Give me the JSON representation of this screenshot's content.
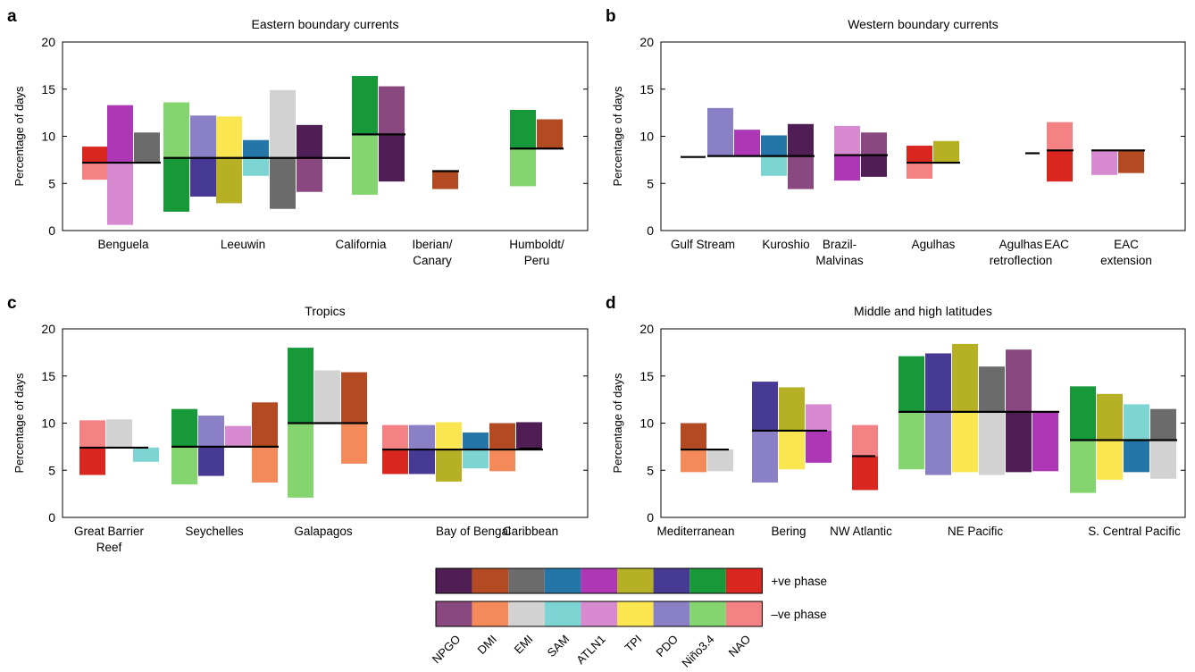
{
  "figure": {
    "legend": {
      "rows": [
        {
          "label": "+ve phase",
          "colors": [
            "#4e1e55",
            "#b34a21",
            "#6b6b6b",
            "#2476a8",
            "#ad37b5",
            "#b5b024",
            "#473a95",
            "#17993a",
            "#d9261f"
          ]
        },
        {
          "label": "–ve phase",
          "colors": [
            "#8a4880",
            "#f48a5a",
            "#d2d2d2",
            "#7dd5d3",
            "#d78ad0",
            "#f9e650",
            "#8a80c6",
            "#84d46f",
            "#f48284"
          ]
        }
      ],
      "indices": [
        "NPGO",
        "DMI",
        "EMI",
        "SAM",
        "ATLN1",
        "TPI",
        "PDO",
        "Niño3.4",
        "NAO"
      ]
    }
  },
  "colors": {
    "NPGO": {
      "pos": "#4e1e55",
      "neg": "#8a4880"
    },
    "DMI": {
      "pos": "#b34a21",
      "neg": "#f48a5a"
    },
    "EMI": {
      "pos": "#6b6b6b",
      "neg": "#d2d2d2"
    },
    "SAM": {
      "pos": "#2476a8",
      "neg": "#7dd5d3"
    },
    "ATLN1": {
      "pos": "#ad37b5",
      "neg": "#d78ad0"
    },
    "TPI": {
      "pos": "#b5b024",
      "neg": "#f9e650"
    },
    "PDO": {
      "pos": "#473a95",
      "neg": "#8a80c6"
    },
    "Niño3.4": {
      "pos": "#17993a",
      "neg": "#84d46f"
    },
    "NAO": {
      "pos": "#d9261f",
      "neg": "#f48284"
    }
  },
  "chart_data": [
    {
      "type": "bar",
      "panel": "a",
      "title": "Eastern boundary currents",
      "xlabel": "",
      "ylabel": "Percentage of days",
      "ylim": [
        0,
        20
      ],
      "yticks": [
        0,
        5,
        10,
        15,
        20
      ],
      "legend": "below",
      "groups": [
        {
          "label": [
            "Benguela"
          ],
          "baseline": 7.2,
          "bars": [
            {
              "index": "NAO",
              "pos": 8.9,
              "neg": 5.4
            },
            {
              "index": "ATLN1",
              "pos": 13.3,
              "neg": 0.6
            },
            {
              "index": "EMI",
              "pos": 10.4,
              "neg": 7.2
            }
          ]
        },
        {
          "label": [
            "Leeuwin"
          ],
          "baseline": 7.7,
          "bars": [
            {
              "index": "Niño3.4",
              "pos": 2.0,
              "neg": 13.6
            },
            {
              "index": "PDO",
              "pos": 3.6,
              "neg": 12.2
            },
            {
              "index": "TPI",
              "pos": 2.9,
              "neg": 12.1
            },
            {
              "index": "SAM",
              "pos": 9.6,
              "neg": 5.8
            },
            {
              "index": "EMI",
              "pos": 2.3,
              "neg": 14.9
            },
            {
              "index": "NPGO",
              "pos": 11.2,
              "neg": 4.1
            }
          ]
        },
        {
          "label": [
            "California"
          ],
          "baseline": 10.2,
          "bars": [
            {
              "index": "Niño3.4",
              "pos": 16.4,
              "neg": 3.8
            },
            {
              "index": "NPGO",
              "pos": 5.2,
              "neg": 15.3
            }
          ]
        },
        {
          "label": [
            "Iberian/",
            "Canary"
          ],
          "baseline": 6.3,
          "bars": [
            {
              "index": "DMI",
              "pos": 4.4,
              "neg": 6.3
            }
          ]
        },
        {
          "label": [
            "Humboldt/",
            "Peru"
          ],
          "baseline": 8.7,
          "bars": [
            {
              "index": "Niño3.4",
              "pos": 12.8,
              "neg": 4.7
            },
            {
              "index": "DMI",
              "pos": 11.8,
              "neg": 8.7
            }
          ]
        }
      ]
    },
    {
      "type": "bar",
      "panel": "b",
      "title": "Western boundary currents",
      "xlabel": "",
      "ylabel": "Percentage of days",
      "ylim": [
        0,
        20
      ],
      "yticks": [
        0,
        5,
        10,
        15,
        20
      ],
      "legend": "below",
      "groups": [
        {
          "label": [
            "Gulf Stream"
          ],
          "baseline": 7.8,
          "bars": []
        },
        {
          "label": [
            "Kuroshio"
          ],
          "baseline": 7.9,
          "bars": [
            {
              "index": "PDO",
              "pos": 7.9,
              "neg": 13.0
            },
            {
              "index": "ATLN1",
              "pos": 10.7,
              "neg": 7.9
            },
            {
              "index": "SAM",
              "pos": 10.1,
              "neg": 5.8
            },
            {
              "index": "NPGO",
              "pos": 11.3,
              "neg": 4.4
            }
          ]
        },
        {
          "label": [
            "Brazil-",
            "Malvinas"
          ],
          "baseline": 8.0,
          "bars": [
            {
              "index": "ATLN1",
              "pos": 5.3,
              "neg": 11.1
            },
            {
              "index": "NPGO",
              "pos": 5.7,
              "neg": 10.4
            }
          ]
        },
        {
          "label": [
            "Agulhas"
          ],
          "baseline": 7.2,
          "bars": [
            {
              "index": "NAO",
              "pos": 9.0,
              "neg": 5.5
            },
            {
              "index": "TPI",
              "pos": 9.5,
              "neg": 7.2
            }
          ]
        },
        {
          "label": [
            "Agulhas",
            "retroflection"
          ],
          "baseline": 8.2,
          "bars": []
        },
        {
          "label": [
            "EAC"
          ],
          "baseline": 8.5,
          "bars": [
            {
              "index": "NAO",
              "pos": 5.2,
              "neg": 11.5
            }
          ]
        },
        {
          "label": [
            "EAC",
            "extension"
          ],
          "baseline": 8.5,
          "bars": [
            {
              "index": "ATLN1",
              "pos": 8.5,
              "neg": 5.9
            },
            {
              "index": "DMI",
              "pos": 6.1,
              "neg": 8.5
            }
          ]
        }
      ]
    },
    {
      "type": "bar",
      "panel": "c",
      "title": "Tropics",
      "xlabel": "",
      "ylabel": "Percentage of days",
      "ylim": [
        0,
        20
      ],
      "yticks": [
        0,
        5,
        10,
        15,
        20
      ],
      "legend": "below",
      "groups": [
        {
          "label": [
            "Great Barrier",
            "Reef"
          ],
          "baseline": 7.4,
          "bars": [
            {
              "index": "NAO",
              "pos": 4.5,
              "neg": 10.3
            },
            {
              "index": "EMI",
              "pos": 7.4,
              "neg": 10.4
            },
            {
              "index": "SAM",
              "pos": 7.4,
              "neg": 5.9
            }
          ]
        },
        {
          "label": [
            "Seychelles"
          ],
          "baseline": 7.5,
          "bars": [
            {
              "index": "Niño3.4",
              "pos": 11.5,
              "neg": 3.5
            },
            {
              "index": "PDO",
              "pos": 4.4,
              "neg": 10.8
            },
            {
              "index": "ATLN1",
              "pos": 7.5,
              "neg": 9.7
            },
            {
              "index": "DMI",
              "pos": 12.2,
              "neg": 3.7
            }
          ]
        },
        {
          "label": [
            "Galapagos"
          ],
          "baseline": 10.0,
          "bars": [
            {
              "index": "Niño3.4",
              "pos": 18.0,
              "neg": 2.1
            },
            {
              "index": "EMI",
              "pos": 10.0,
              "neg": 15.6
            },
            {
              "index": "DMI",
              "pos": 15.4,
              "neg": 5.7
            }
          ]
        },
        {
          "label": [
            "Bay of Bengal"
          ],
          "baseline": 7.2,
          "bars": [
            {
              "index": "NAO",
              "pos": 4.6,
              "neg": 9.8
            },
            {
              "index": "PDO",
              "pos": 4.6,
              "neg": 9.8
            },
            {
              "index": "TPI",
              "pos": 3.8,
              "neg": 10.1
            },
            {
              "index": "SAM",
              "pos": 9.0,
              "neg": 5.2
            },
            {
              "index": "DMI",
              "pos": 10.0,
              "neg": 4.9
            },
            {
              "index": "NPGO",
              "pos": 10.1,
              "neg": 7.2
            }
          ]
        },
        {
          "label": [
            "Caribbean"
          ],
          "baseline": 7.3,
          "bars": []
        }
      ]
    },
    {
      "type": "bar",
      "panel": "d",
      "title": "Middle and high latitudes",
      "xlabel": "",
      "ylabel": "Percentage of days",
      "ylim": [
        0,
        20
      ],
      "yticks": [
        0,
        5,
        10,
        15,
        20
      ],
      "legend": "below",
      "groups": [
        {
          "label": [
            "Mediterranean"
          ],
          "baseline": 7.2,
          "bars": [
            {
              "index": "DMI",
              "pos": 10.0,
              "neg": 4.8
            },
            {
              "index": "EMI",
              "pos": 7.2,
              "neg": 4.9
            }
          ]
        },
        {
          "label": [
            "Bering"
          ],
          "baseline": 9.2,
          "bars": [
            {
              "index": "PDO",
              "pos": 14.4,
              "neg": 3.7
            },
            {
              "index": "TPI",
              "pos": 13.8,
              "neg": 5.1
            },
            {
              "index": "ATLN1",
              "pos": 5.8,
              "neg": 12.0
            }
          ]
        },
        {
          "label": [
            "NW Atlantic"
          ],
          "baseline": 6.5,
          "bars": [
            {
              "index": "NAO",
              "pos": 2.9,
              "neg": 9.8
            }
          ]
        },
        {
          "label": [
            "NE Pacific"
          ],
          "baseline": 11.2,
          "bars": [
            {
              "index": "Niño3.4",
              "pos": 17.1,
              "neg": 5.1
            },
            {
              "index": "PDO",
              "pos": 17.4,
              "neg": 4.5
            },
            {
              "index": "TPI",
              "pos": 18.4,
              "neg": 4.8
            },
            {
              "index": "EMI",
              "pos": 16.0,
              "neg": 4.5
            },
            {
              "index": "NPGO",
              "pos": 4.8,
              "neg": 17.8
            },
            {
              "index": "ATLN1",
              "pos": 4.9,
              "neg": 11.2
            }
          ]
        },
        {
          "label": [
            "S. Central Pacific"
          ],
          "baseline": 8.2,
          "bars": [
            {
              "index": "Niño3.4",
              "pos": 13.9,
              "neg": 2.6
            },
            {
              "index": "TPI",
              "pos": 13.1,
              "neg": 4.0
            },
            {
              "index": "SAM",
              "pos": 4.8,
              "neg": 12.0
            },
            {
              "index": "EMI",
              "pos": 11.5,
              "neg": 4.1
            }
          ]
        }
      ]
    }
  ]
}
